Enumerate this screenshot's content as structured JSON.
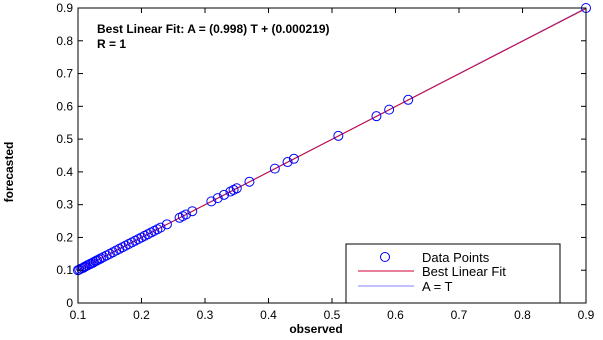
{
  "chart_data": {
    "type": "scatter",
    "xlabel": "observed",
    "ylabel": "forecasted",
    "xlim": [
      0.1,
      0.9
    ],
    "ylim": [
      0,
      0.9
    ],
    "xticks": [
      0.1,
      0.2,
      0.3,
      0.4,
      0.5,
      0.6,
      0.7,
      0.8,
      0.9
    ],
    "yticks": [
      0,
      0.1,
      0.2,
      0.3,
      0.4,
      0.5,
      0.6,
      0.7,
      0.8,
      0.9
    ],
    "xtick_labels": [
      "0.1",
      "0.2",
      "0.3",
      "0.4",
      "0.5",
      "0.6",
      "0.7",
      "0.8",
      "0.9"
    ],
    "ytick_labels": [
      "0",
      "0.1",
      "0.2",
      "0.3",
      "0.4",
      "0.5",
      "0.6",
      "0.7",
      "0.8",
      "0.9"
    ],
    "grid": false,
    "legend_position": "bottom-right",
    "annotations": [
      "Best Linear Fit:  A = (0.998) T + (0.000219)",
      "R = 1"
    ],
    "fit": {
      "slope": 0.998,
      "intercept": 0.000219
    },
    "series": [
      {
        "name": "Data Points",
        "kind": "markers",
        "color": "#0000ff",
        "points": [
          [
            0.1,
            0.1
          ],
          [
            0.102,
            0.102
          ],
          [
            0.105,
            0.105
          ],
          [
            0.108,
            0.107
          ],
          [
            0.11,
            0.11
          ],
          [
            0.112,
            0.112
          ],
          [
            0.115,
            0.115
          ],
          [
            0.118,
            0.118
          ],
          [
            0.12,
            0.12
          ],
          [
            0.123,
            0.122
          ],
          [
            0.125,
            0.125
          ],
          [
            0.128,
            0.128
          ],
          [
            0.13,
            0.13
          ],
          [
            0.133,
            0.133
          ],
          [
            0.136,
            0.136
          ],
          [
            0.14,
            0.14
          ],
          [
            0.145,
            0.145
          ],
          [
            0.15,
            0.15
          ],
          [
            0.155,
            0.155
          ],
          [
            0.16,
            0.16
          ],
          [
            0.165,
            0.165
          ],
          [
            0.17,
            0.17
          ],
          [
            0.175,
            0.175
          ],
          [
            0.18,
            0.18
          ],
          [
            0.185,
            0.185
          ],
          [
            0.19,
            0.19
          ],
          [
            0.195,
            0.195
          ],
          [
            0.2,
            0.2
          ],
          [
            0.205,
            0.205
          ],
          [
            0.21,
            0.21
          ],
          [
            0.215,
            0.215
          ],
          [
            0.22,
            0.22
          ],
          [
            0.225,
            0.225
          ],
          [
            0.23,
            0.23
          ],
          [
            0.24,
            0.24
          ],
          [
            0.26,
            0.26
          ],
          [
            0.265,
            0.265
          ],
          [
            0.27,
            0.27
          ],
          [
            0.28,
            0.28
          ],
          [
            0.31,
            0.31
          ],
          [
            0.32,
            0.32
          ],
          [
            0.33,
            0.33
          ],
          [
            0.34,
            0.34
          ],
          [
            0.345,
            0.345
          ],
          [
            0.35,
            0.35
          ],
          [
            0.37,
            0.37
          ],
          [
            0.41,
            0.41
          ],
          [
            0.43,
            0.43
          ],
          [
            0.44,
            0.44
          ],
          [
            0.51,
            0.51
          ],
          [
            0.57,
            0.57
          ],
          [
            0.59,
            0.59
          ],
          [
            0.62,
            0.62
          ],
          [
            0.9,
            0.9
          ]
        ]
      },
      {
        "name": "Best Linear Fit",
        "kind": "line",
        "color": "#cc0033"
      },
      {
        "name": "A = T",
        "kind": "line",
        "color": "#8080ff"
      }
    ]
  }
}
